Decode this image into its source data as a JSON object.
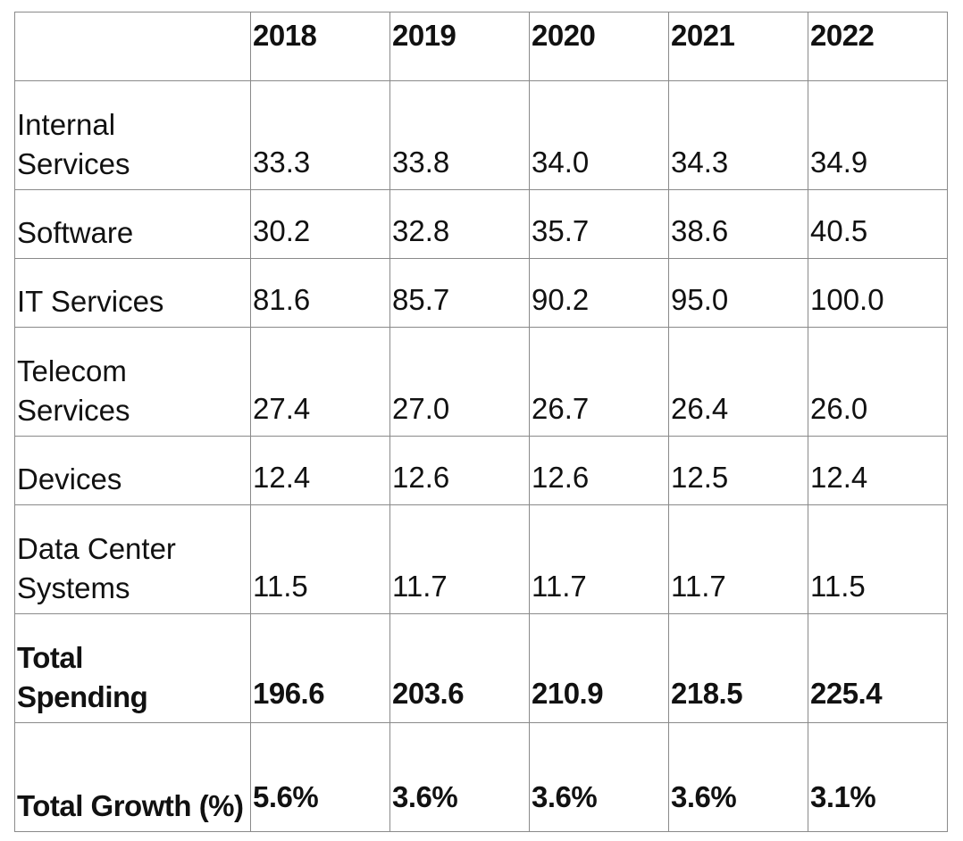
{
  "table": {
    "header": [
      "",
      "2018",
      "2019",
      "2020",
      "2021",
      "2022"
    ],
    "rows": [
      {
        "label": "Internal Services",
        "values": [
          "33.3",
          "33.8",
          "34.0",
          "34.3",
          "34.9"
        ]
      },
      {
        "label": "Software",
        "values": [
          "30.2",
          "32.8",
          "35.7",
          "38.6",
          "40.5"
        ]
      },
      {
        "label": "IT Services",
        "values": [
          "81.6",
          "85.7",
          "90.2",
          "95.0",
          "100.0"
        ]
      },
      {
        "label": "Telecom Services",
        "values": [
          "27.4",
          "27.0",
          "26.7",
          "26.4",
          "26.0"
        ]
      },
      {
        "label": "Devices",
        "values": [
          "12.4",
          "12.6",
          "12.6",
          "12.5",
          "12.4"
        ]
      },
      {
        "label": "Data Center Systems",
        "values": [
          "11.5",
          "11.7",
          "11.7",
          "11.7",
          "11.5"
        ]
      },
      {
        "label": "Total Spending",
        "values": [
          "196.6",
          "203.6",
          "210.9",
          "218.5",
          "225.4"
        ]
      },
      {
        "label": "Total Growth (%)",
        "values": [
          "5.6%",
          "3.6%",
          "3.6%",
          "3.6%",
          "3.1%"
        ]
      }
    ]
  }
}
